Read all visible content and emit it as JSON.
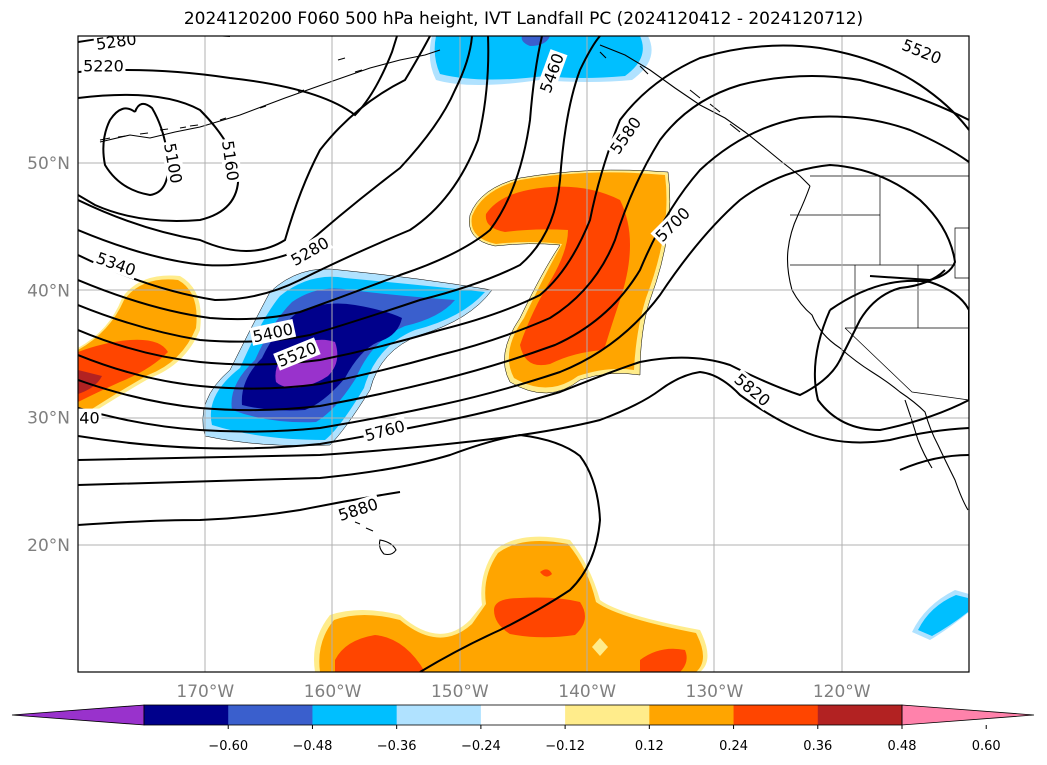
{
  "title": "2024120200 F060 500 hPa height, IVT Landfall PC (2024120412 - 2024120712)",
  "map": {
    "lon_range": [
      -180,
      -110
    ],
    "lat_range": [
      10,
      60
    ],
    "lon_ticks": [
      {
        "lon": -170,
        "label": "170°W"
      },
      {
        "lon": -160,
        "label": "160°W"
      },
      {
        "lon": -150,
        "label": "150°W"
      },
      {
        "lon": -140,
        "label": "140°W"
      },
      {
        "lon": -130,
        "label": "130°W"
      },
      {
        "lon": -120,
        "label": "120°W"
      }
    ],
    "lat_ticks": [
      {
        "lat": 20,
        "label": "20°N"
      },
      {
        "lat": 30,
        "label": "30°N"
      },
      {
        "lat": 40,
        "label": "40°N"
      },
      {
        "lat": 50,
        "label": "50°N"
      }
    ],
    "grid": true,
    "contour_labels": [
      {
        "text": "5280",
        "lon": -177.0,
        "lat": 59.6,
        "angle": -8
      },
      {
        "text": "5220",
        "lon": -178.0,
        "lat": 57.7,
        "angle": 0
      },
      {
        "text": "5100",
        "lon": -172.5,
        "lat": 50.0,
        "angle": 80
      },
      {
        "text": "5160",
        "lon": -168.0,
        "lat": 50.2,
        "angle": 82
      },
      {
        "text": "5280",
        "lon": -161.8,
        "lat": 43.1,
        "angle": -30
      },
      {
        "text": "5340",
        "lon": -177.0,
        "lat": 42.1,
        "angle": 20
      },
      {
        "text": "5400",
        "lon": -164.7,
        "lat": 36.7,
        "angle": -12
      },
      {
        "text": "5520",
        "lon": -162.8,
        "lat": 35.0,
        "angle": -22
      },
      {
        "text": "40",
        "lon": -179.1,
        "lat": 30.0,
        "angle": 0
      },
      {
        "text": "5760",
        "lon": -155.9,
        "lat": 29.0,
        "angle": -15
      },
      {
        "text": "5880",
        "lon": -158.0,
        "lat": 22.8,
        "angle": -18
      },
      {
        "text": "5460",
        "lon": -142.8,
        "lat": 57.1,
        "angle": -70
      },
      {
        "text": "5580",
        "lon": -137.0,
        "lat": 52.2,
        "angle": -55
      },
      {
        "text": "5700",
        "lon": -133.3,
        "lat": 45.2,
        "angle": -45
      },
      {
        "text": "5820",
        "lon": -127.0,
        "lat": 32.2,
        "angle": 40
      },
      {
        "text": "5520",
        "lon": -113.7,
        "lat": 58.8,
        "angle": 22
      }
    ],
    "colors": {
      "neg_060": "#9932cc",
      "neg_048": "#00008b",
      "neg_036": "#3a5fcd",
      "neg_024": "#00bfff",
      "neg_012": "#b0e2ff",
      "pos_012": "#ffec8b",
      "pos_024": "#ffa500",
      "pos_036": "#ff4500",
      "pos_048": "#b22222",
      "pos_060": "#ff82ab"
    }
  },
  "colorbar": {
    "labels": [
      "−0.60",
      "−0.48",
      "−0.36",
      "−0.24",
      "−0.12",
      "0.12",
      "0.24",
      "0.36",
      "0.48",
      "0.60"
    ],
    "colors": [
      "#9932cc",
      "#00008b",
      "#3a5fcd",
      "#00bfff",
      "#b0e2ff",
      "#ffffff",
      "#ffec8b",
      "#ffa500",
      "#ff4500",
      "#b22222",
      "#ff82ab"
    ]
  }
}
